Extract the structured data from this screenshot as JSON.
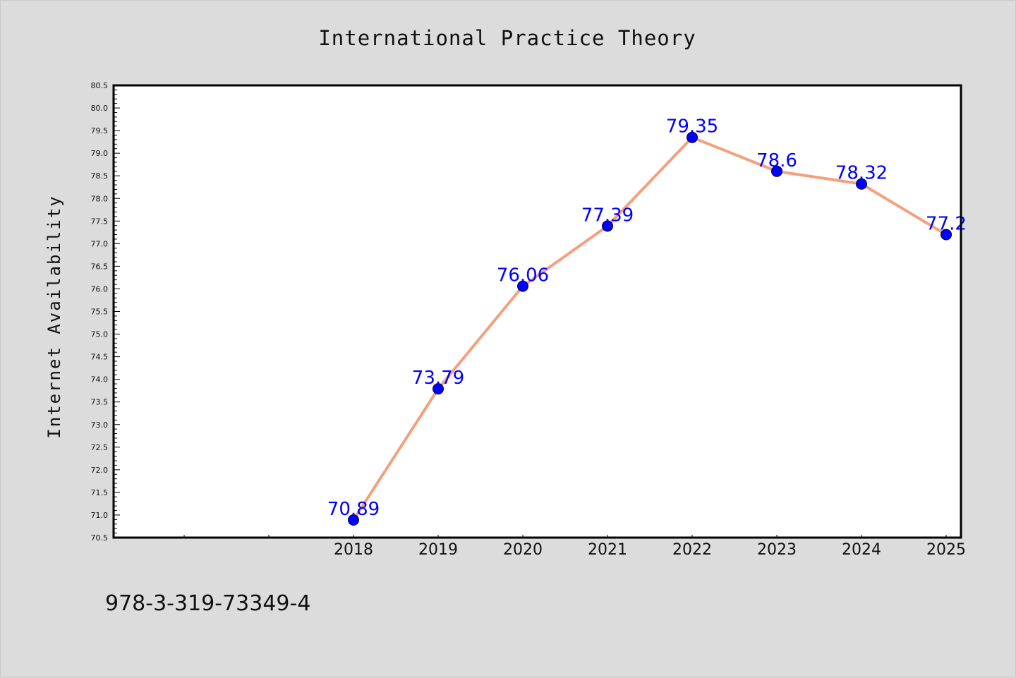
{
  "chart_data": {
    "type": "line",
    "title": "International Practice Theory",
    "xlabel": "",
    "ylabel": "Internet Availability",
    "x": [
      "2018",
      "2019",
      "2020",
      "2021",
      "2022",
      "2023",
      "2024",
      "2025"
    ],
    "values": [
      70.89,
      73.79,
      76.06,
      77.39,
      79.35,
      78.6,
      78.32,
      77.2
    ],
    "data_labels": [
      "70.89",
      "73.79",
      "76.06",
      "77.39",
      "79.35",
      "78.6",
      "78.32",
      "77.2"
    ],
    "ylim": [
      70.5,
      80.5
    ],
    "y_ticks": [
      "70.5",
      "71.0",
      "71.5",
      "72.0",
      "72.5",
      "73.0",
      "73.5",
      "74.0",
      "74.5",
      "75.0",
      "75.5",
      "76.0",
      "76.5",
      "77.0",
      "77.5",
      "78.0",
      "78.5",
      "79.0",
      "79.5",
      "80.0",
      "80.5"
    ],
    "x_slots": 10,
    "first_data_slot": 2,
    "grid": false,
    "legend": "none",
    "line_color": "#f4a07f",
    "marker_color": "#0000ff",
    "label_color": "#0000ff"
  },
  "footer": {
    "isbn": "978-3-319-73349-4"
  }
}
